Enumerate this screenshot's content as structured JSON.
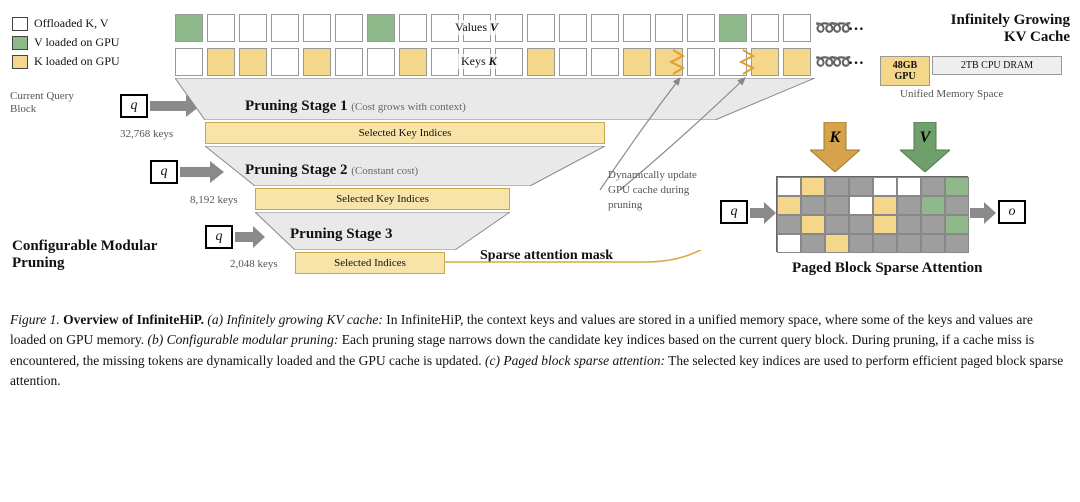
{
  "colors": {
    "offloaded": "#ffffff",
    "v_loaded": "#8fb98a",
    "k_loaded": "#f4d78b",
    "selected_bg": "#f8e4a8",
    "selected_border": "#c9a94f",
    "gpu_box": "#f4d78b",
    "dram_box": "#eeeeee",
    "arrow_gray": "#8a8a8a",
    "trap_fill": "#e9e9e9",
    "k_arrow": "#d6a24a",
    "v_arrow": "#6fa06b",
    "grid_gray": "#9e9e9e",
    "text_gray": "#555555"
  },
  "legend": {
    "offloaded": "Offloaded K, V",
    "v_loaded": "V loaded on GPU",
    "k_loaded": "K loaded on GPU"
  },
  "top": {
    "values_label": "Values",
    "values_sym": "V",
    "keys_label": "Keys",
    "keys_sym": "K",
    "n_blocks": 20,
    "v_loaded_idx": [
      0,
      6,
      17
    ],
    "k_loaded_idx": [
      1,
      2,
      4,
      7,
      11,
      14,
      15,
      18,
      19
    ],
    "title1": "Infinitely Growing",
    "title2": "KV Cache",
    "gpu": "48GB GPU",
    "dram": "2TB CPU DRAM",
    "unified": "Unified Memory Space",
    "ellipsis": "…"
  },
  "left": {
    "current_query": "Current Query Block",
    "q": "q",
    "stage1": "Pruning Stage 1",
    "stage1_sub": "(Cost grows with context)",
    "stage1_keys": "32,768 keys",
    "stage1_sel": "Selected Key Indices",
    "stage2": "Pruning Stage 2",
    "stage2_sub": "(Constant cost)",
    "stage2_keys": "8,192 keys",
    "stage2_sel": "Selected Key Indices",
    "stage3": "Pruning Stage 3",
    "stage3_keys": "2,048 keys",
    "stage3_sel": "Selected Indices",
    "config": "Configurable Modular Pruning"
  },
  "mid": {
    "dyn1": "Dynamically update",
    "dyn2": "GPU cache during",
    "dyn3": "pruning",
    "sparse": "Sparse attention mask"
  },
  "right": {
    "K": "K",
    "V": "V",
    "q": "q",
    "o": "o",
    "title": "Paged Block Sparse Attention",
    "grid": {
      "rows": 4,
      "cols": 8,
      "colors": [
        [
          "w",
          "k",
          "g",
          "g",
          "w",
          "w",
          "g",
          "v"
        ],
        [
          "k",
          "g",
          "g",
          "w",
          "k",
          "g",
          "v",
          "g"
        ],
        [
          "g",
          "k",
          "g",
          "g",
          "k",
          "g",
          "g",
          "v"
        ],
        [
          "w",
          "g",
          "k",
          "g",
          "g",
          "g",
          "g",
          "g"
        ]
      ],
      "map": {
        "w": "#ffffff",
        "k": "#f4d78b",
        "v": "#8fb98a",
        "g": "#9e9e9e"
      }
    }
  },
  "caption": {
    "prefix": "Figure 1. ",
    "bold1": "Overview of InfiniteHiP.",
    "a": " (a) Infinitely growing KV cache:",
    "a_txt": " In InfiniteHiP, the context keys and values are stored in a unified memory space, where some of the keys and values are loaded on GPU memory.",
    "b": " (b) Configurable modular pruning:",
    "b_txt": " Each pruning stage narrows down the candidate key indices based on the current query block. During pruning, if a cache miss is encountered, the missing tokens are dynamically loaded and the GPU cache is updated.",
    "c": " (c) Paged block sparse attention:",
    "c_txt": " The selected key indices are used to perform efficient paged block sparse attention."
  }
}
